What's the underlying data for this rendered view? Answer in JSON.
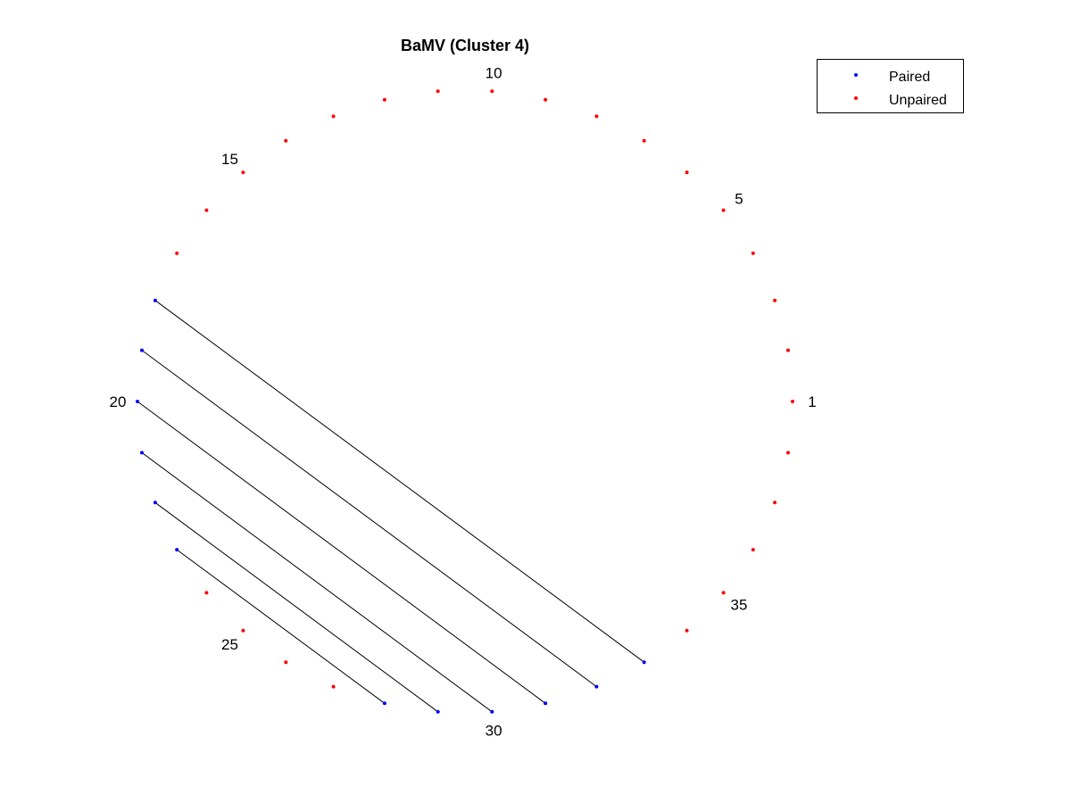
{
  "chart_data": {
    "type": "scatter",
    "title": "BaMV (Cluster 4)",
    "layout": "circular arc diagram",
    "n_positions": 38,
    "index_labels": [
      1,
      5,
      10,
      15,
      20,
      25,
      30,
      35
    ],
    "pairs": [
      [
        18,
        33
      ],
      [
        19,
        32
      ],
      [
        20,
        31
      ],
      [
        21,
        30
      ],
      [
        22,
        29
      ],
      [
        23,
        28
      ]
    ],
    "paired": [
      18,
      19,
      20,
      21,
      22,
      23,
      28,
      29,
      30,
      31,
      32,
      33
    ],
    "unpaired": [
      1,
      2,
      3,
      4,
      5,
      6,
      7,
      8,
      9,
      10,
      11,
      12,
      13,
      14,
      15,
      16,
      17,
      24,
      25,
      26,
      27,
      34,
      35,
      36,
      37,
      38
    ],
    "series": [
      {
        "name": "Paired",
        "color": "#0000ff"
      },
      {
        "name": "Unpaired",
        "color": "#ff0000"
      }
    ],
    "legend": "top-right",
    "grid": false,
    "axes_visible": false
  }
}
